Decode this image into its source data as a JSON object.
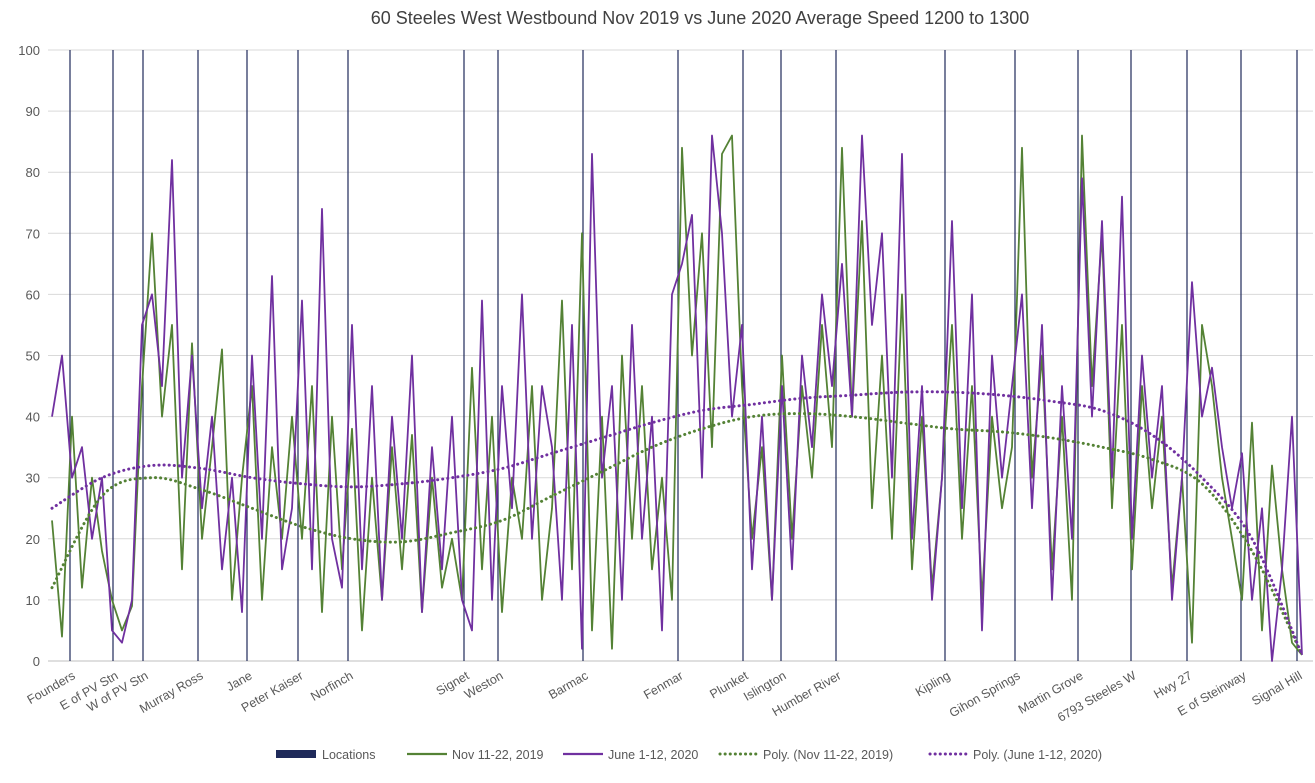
{
  "chart_data": {
    "type": "line",
    "title": "60 Steeles West Westbound Nov 2019 vs June 2020 Average Speed 1200 to 1300",
    "xlabel": "",
    "ylabel": "",
    "ylim": [
      0,
      100
    ],
    "yticks": [
      "0",
      "10",
      "20",
      "30",
      "40",
      "50",
      "60",
      "70",
      "80",
      "90",
      "100"
    ],
    "grid": true,
    "legend_position": "bottom",
    "n_samples": 126,
    "locations": {
      "name": "Locations",
      "color": "#1f2a5a",
      "items": [
        {
          "label": "Founders",
          "index": 1.8
        },
        {
          "label": "E of PV Stn",
          "index": 6.1
        },
        {
          "label": "W of PV Stn",
          "index": 9.1
        },
        {
          "label": "Murray Ross",
          "index": 14.6
        },
        {
          "label": "Jane",
          "index": 19.5
        },
        {
          "label": "Peter Kaiser",
          "index": 24.6
        },
        {
          "label": "Norfinch",
          "index": 29.6
        },
        {
          "label": "Signet",
          "index": 41.2
        },
        {
          "label": "Weston",
          "index": 44.6
        },
        {
          "label": "Barmac",
          "index": 53.1
        },
        {
          "label": "Fenmar",
          "index": 62.6
        },
        {
          "label": "Plunket",
          "index": 69.1
        },
        {
          "label": "Islington",
          "index": 72.9
        },
        {
          "label": "Humber River",
          "index": 78.4
        },
        {
          "label": "Kipling",
          "index": 89.3
        },
        {
          "label": "Gihon Springs",
          "index": 96.3
        },
        {
          "label": "Martin Grove",
          "index": 102.6
        },
        {
          "label": "6793 Steeles W",
          "index": 107.9
        },
        {
          "label": "Hwy 27",
          "index": 113.5
        },
        {
          "label": "E of Steinway",
          "index": 118.9
        },
        {
          "label": "Signal Hill",
          "index": 124.5
        }
      ]
    },
    "series": [
      {
        "name": "Nov 11-22, 2019",
        "color": "#548235",
        "values": [
          23,
          4,
          40,
          12,
          30,
          18,
          10,
          5,
          9,
          45,
          70,
          40,
          55,
          15,
          52,
          20,
          35,
          51,
          10,
          30,
          45,
          10,
          35,
          20,
          40,
          20,
          45,
          8,
          40,
          15,
          38,
          5,
          30,
          10,
          35,
          15,
          37,
          8,
          30,
          12,
          20,
          10,
          48,
          15,
          40,
          8,
          30,
          20,
          45,
          10,
          25,
          59,
          15,
          70,
          5,
          40,
          2,
          50,
          20,
          45,
          15,
          30,
          10,
          84,
          50,
          70,
          35,
          83,
          86,
          45,
          20,
          35,
          10,
          50,
          20,
          45,
          30,
          55,
          35,
          84,
          40,
          72,
          25,
          50,
          20,
          60,
          15,
          40,
          12,
          30,
          55,
          20,
          45,
          10,
          40,
          25,
          35,
          84,
          30,
          50,
          15,
          40,
          10,
          86,
          45,
          70,
          25,
          55,
          15,
          45,
          25,
          40,
          12,
          30,
          3,
          55,
          45,
          30,
          20,
          10,
          39,
          5,
          32,
          15,
          3,
          1
        ]
      },
      {
        "name": "June 1-12, 2020",
        "color": "#7030a0",
        "values": [
          40,
          50,
          30,
          35,
          20,
          30,
          5,
          3,
          10,
          55,
          60,
          45,
          82,
          30,
          50,
          25,
          40,
          15,
          30,
          8,
          50,
          20,
          63,
          15,
          25,
          59,
          15,
          74,
          20,
          12,
          55,
          15,
          45,
          10,
          40,
          20,
          50,
          8,
          35,
          15,
          40,
          10,
          5,
          59,
          10,
          45,
          25,
          60,
          20,
          45,
          35,
          10,
          55,
          2,
          83,
          30,
          45,
          10,
          55,
          20,
          40,
          5,
          60,
          65,
          73,
          30,
          86,
          70,
          40,
          55,
          15,
          40,
          10,
          45,
          15,
          50,
          35,
          60,
          45,
          65,
          40,
          86,
          55,
          70,
          30,
          83,
          20,
          45,
          10,
          30,
          72,
          25,
          60,
          5,
          50,
          30,
          45,
          60,
          25,
          55,
          10,
          45,
          20,
          79,
          40,
          72,
          30,
          76,
          20,
          50,
          30,
          45,
          10,
          30,
          62,
          40,
          48,
          35,
          25,
          34,
          10,
          25,
          0,
          15,
          40,
          1
        ]
      }
    ],
    "trendlines": {
      "sample_step": 5,
      "items": [
        {
          "name": "Poly. (Nov 11-22, 2019)",
          "color": "#548235",
          "values": [
            12,
            27,
            30,
            28,
            25,
            22,
            20,
            19.5,
            21,
            23,
            27,
            31,
            35,
            38,
            40,
            40.5,
            40,
            39,
            38,
            37.5,
            36.5,
            35,
            33,
            29,
            18,
            1
          ]
        },
        {
          "name": "Poly. (June 1-12, 2020)",
          "color": "#7030a0",
          "values": [
            25,
            30,
            32,
            31.5,
            30,
            29,
            28.5,
            29,
            30,
            31.5,
            34,
            36.5,
            39,
            41,
            42,
            43,
            43.5,
            44,
            44,
            43.5,
            42.5,
            41,
            37,
            30,
            20,
            1
          ]
        }
      ]
    }
  }
}
